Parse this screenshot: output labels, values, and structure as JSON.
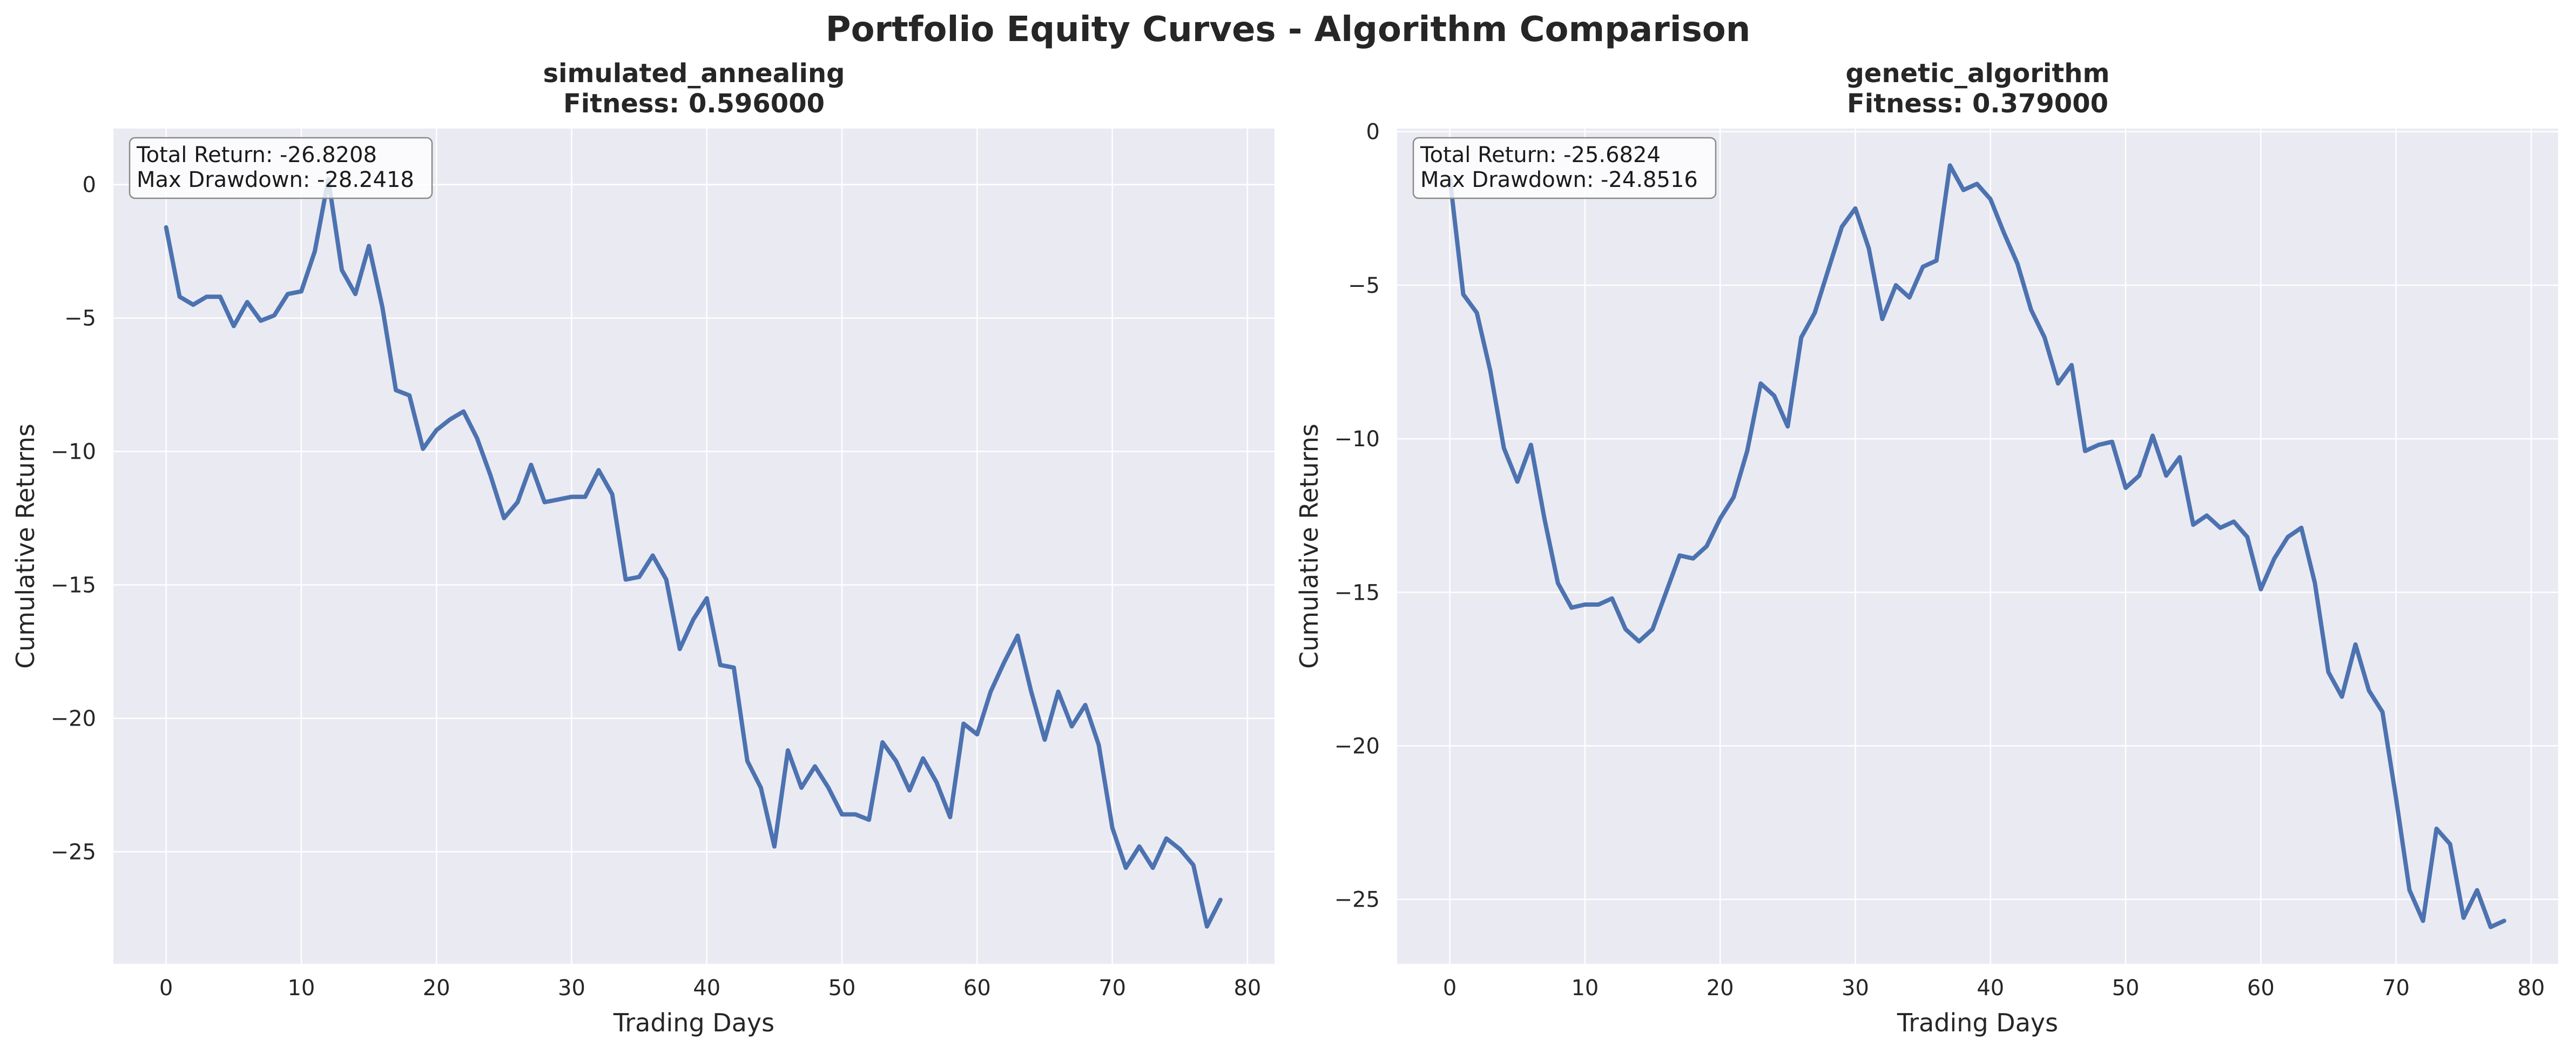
{
  "figure": {
    "title": "Portfolio Equity Curves - Algorithm Comparison"
  },
  "chart_data": [
    {
      "type": "line",
      "title": "simulated_annealing",
      "subtitle": "Fitness: 0.596000",
      "xlabel": "Trading Days",
      "ylabel": "Cumulative Returns",
      "xlim": [
        -3.9,
        82
      ],
      "ylim": [
        -29.2,
        2.1
      ],
      "xticks": [
        0,
        10,
        20,
        30,
        40,
        50,
        60,
        70,
        80
      ],
      "yticks": [
        0,
        -5,
        -10,
        -15,
        -20,
        -25
      ],
      "grid": true,
      "annotation": [
        "Total Return: -26.8208",
        "Max Drawdown: -28.2418"
      ],
      "series": [
        {
          "color": "#4c72b0",
          "x": [
            0,
            1,
            2,
            3,
            4,
            5,
            6,
            7,
            8,
            9,
            10,
            11,
            12,
            13,
            14,
            15,
            16,
            17,
            18,
            19,
            20,
            21,
            22,
            23,
            24,
            25,
            26,
            27,
            28,
            29,
            30,
            31,
            32,
            33,
            34,
            35,
            36,
            37,
            38,
            39,
            40,
            41,
            42,
            43,
            44,
            45,
            46,
            47,
            48,
            49,
            50,
            51,
            52,
            53,
            54,
            55,
            56,
            57,
            58,
            59,
            60,
            61,
            62,
            63,
            64,
            65,
            66,
            67,
            68,
            69,
            70,
            71,
            72,
            73,
            74,
            75,
            76,
            77,
            78
          ],
          "y": [
            -1.6,
            -4.2,
            -4.5,
            -4.2,
            -4.2,
            -5.3,
            -4.4,
            -5.1,
            -4.9,
            -4.1,
            -4.0,
            -2.5,
            0.2,
            -3.2,
            -4.1,
            -2.3,
            -4.6,
            -7.7,
            -7.9,
            -9.9,
            -9.2,
            -8.8,
            -8.5,
            -9.5,
            -10.9,
            -12.5,
            -11.9,
            -10.5,
            -11.9,
            -11.8,
            -11.7,
            -11.7,
            -10.7,
            -11.6,
            -14.8,
            -14.7,
            -13.9,
            -14.8,
            -17.4,
            -16.3,
            -15.5,
            -18.0,
            -18.1,
            -21.6,
            -22.6,
            -24.8,
            -21.2,
            -22.6,
            -21.8,
            -22.6,
            -23.6,
            -23.6,
            -23.8,
            -20.9,
            -21.6,
            -22.7,
            -21.5,
            -22.4,
            -23.7,
            -20.2,
            -20.6,
            -19.0,
            -17.9,
            -16.9,
            -19.0,
            -20.8,
            -19.0,
            -20.3,
            -19.5,
            -21.0,
            -24.1,
            -25.6,
            -24.8,
            -25.6,
            -24.5,
            -24.9,
            -25.5,
            -27.8,
            -26.8
          ]
        }
      ]
    },
    {
      "type": "line",
      "title": "genetic_algorithm",
      "subtitle": "Fitness: 0.379000",
      "xlabel": "Trading Days",
      "ylabel": "Cumulative Returns",
      "xlim": [
        -3.9,
        82
      ],
      "ylim": [
        -27.1,
        0.1
      ],
      "xticks": [
        0,
        10,
        20,
        30,
        40,
        50,
        60,
        70,
        80
      ],
      "yticks": [
        0,
        -5,
        -10,
        -15,
        -20,
        -25
      ],
      "grid": true,
      "annotation": [
        "Total Return: -25.6824",
        "Max Drawdown: -24.8516"
      ],
      "series": [
        {
          "color": "#4c72b0",
          "x": [
            0,
            1,
            2,
            3,
            4,
            5,
            6,
            7,
            8,
            9,
            10,
            11,
            12,
            13,
            14,
            15,
            16,
            17,
            18,
            19,
            20,
            21,
            22,
            23,
            24,
            25,
            26,
            27,
            28,
            29,
            30,
            31,
            32,
            33,
            34,
            35,
            36,
            37,
            38,
            39,
            40,
            41,
            42,
            43,
            44,
            45,
            46,
            47,
            48,
            49,
            50,
            51,
            52,
            53,
            54,
            55,
            56,
            57,
            58,
            59,
            60,
            61,
            62,
            63,
            64,
            65,
            66,
            67,
            68,
            69,
            70,
            71,
            72,
            73,
            74,
            75,
            76,
            77,
            78
          ],
          "y": [
            -1.5,
            -5.3,
            -5.9,
            -7.8,
            -10.3,
            -11.4,
            -10.2,
            -12.6,
            -14.7,
            -15.5,
            -15.4,
            -15.4,
            -15.2,
            -16.2,
            -16.6,
            -16.2,
            -15.0,
            -13.8,
            -13.9,
            -13.5,
            -12.6,
            -11.9,
            -10.4,
            -8.2,
            -8.6,
            -9.6,
            -6.7,
            -5.9,
            -4.5,
            -3.1,
            -2.5,
            -3.8,
            -6.1,
            -5.0,
            -5.4,
            -4.4,
            -4.2,
            -1.1,
            -1.9,
            -1.7,
            -2.2,
            -3.3,
            -4.3,
            -5.8,
            -6.7,
            -8.2,
            -7.6,
            -10.4,
            -10.2,
            -10.1,
            -11.6,
            -11.2,
            -9.9,
            -11.2,
            -10.6,
            -12.8,
            -12.5,
            -12.9,
            -12.7,
            -13.2,
            -14.9,
            -13.9,
            -13.2,
            -12.9,
            -14.7,
            -17.6,
            -18.4,
            -16.7,
            -18.2,
            -18.9,
            -21.7,
            -24.7,
            -25.7,
            -22.7,
            -23.2,
            -25.6,
            -24.7,
            -25.9,
            -25.7
          ]
        }
      ]
    }
  ]
}
